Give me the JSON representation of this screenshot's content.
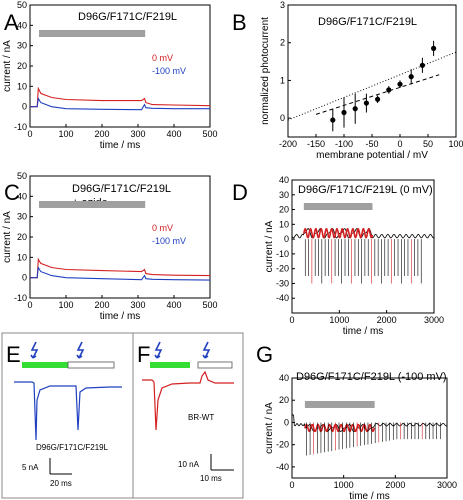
{
  "panels": {
    "A": {
      "letter": "A",
      "title": "D96G/F171C/F219L"
    },
    "B": {
      "letter": "B",
      "title": "D96G/F171C/F219L"
    },
    "C": {
      "letter": "C",
      "title": "D96G/F171C/F219L",
      "title2": "+ azide"
    },
    "D": {
      "letter": "D",
      "title": "D96G/F171C/F219L (0 mV)"
    },
    "E": {
      "letter": "E",
      "label": "D96G/F171C/F219L",
      "scale_y": "5 nA",
      "scale_x": "20 ms"
    },
    "F": {
      "letter": "F",
      "label": "BR-WT",
      "scale_y": "10 nA",
      "scale_x": "10 ms"
    },
    "G": {
      "letter": "G",
      "title": "D96G/F171C/F219L (-100 mV)"
    }
  },
  "colors": {
    "red": "#d42020",
    "blue": "#2040c0",
    "gray": "#a0a0a0",
    "green": "#33dd33",
    "black": "#000000"
  },
  "chart_data": [
    {
      "id": "A",
      "type": "line",
      "xlabel": "time / ms",
      "ylabel": "current / nA",
      "xlim": [
        0,
        500
      ],
      "ylim": [
        -10,
        50
      ],
      "xticks": [
        0,
        100,
        200,
        300,
        400,
        500
      ],
      "yticks": [
        -10,
        0,
        10,
        20,
        30,
        40,
        50
      ],
      "light_bar": [
        25,
        320
      ],
      "series": [
        {
          "name": "0 mV",
          "color": "red",
          "points": [
            [
              0,
              0
            ],
            [
              20,
              0
            ],
            [
              23,
              9
            ],
            [
              30,
              6.5
            ],
            [
              60,
              4.5
            ],
            [
              100,
              3.5
            ],
            [
              200,
              3
            ],
            [
              310,
              3
            ],
            [
              318,
              4
            ],
            [
              322,
              2
            ],
            [
              340,
              1
            ],
            [
              400,
              0.8
            ],
            [
              500,
              0.5
            ]
          ]
        },
        {
          "name": "-100 mV",
          "color": "blue",
          "points": [
            [
              0,
              0
            ],
            [
              20,
              0
            ],
            [
              23,
              4
            ],
            [
              30,
              2
            ],
            [
              60,
              0
            ],
            [
              100,
              -1
            ],
            [
              200,
              -1.3
            ],
            [
              310,
              -1.5
            ],
            [
              318,
              1
            ],
            [
              322,
              -0.5
            ],
            [
              340,
              -0.8
            ],
            [
              400,
              -1
            ],
            [
              500,
              -1
            ]
          ]
        }
      ]
    },
    {
      "id": "B",
      "type": "scatter",
      "xlabel": "membrane potential / mV",
      "ylabel": "normalized photocurrent",
      "xlim": [
        -200,
        100
      ],
      "ylim": [
        -0.5,
        3
      ],
      "xticks": [
        -200,
        -150,
        -100,
        -50,
        0,
        50,
        100
      ],
      "yticks": [
        0,
        1,
        2,
        3
      ],
      "points": [
        [
          -120,
          -0.05,
          0.3
        ],
        [
          -100,
          0.15,
          0.4
        ],
        [
          -80,
          0.25,
          0.4
        ],
        [
          -60,
          0.4,
          0.25
        ],
        [
          -40,
          0.5,
          0.1
        ],
        [
          -20,
          0.75,
          0.1
        ],
        [
          0,
          0.9,
          0.1
        ],
        [
          20,
          1.1,
          0.2
        ],
        [
          40,
          1.4,
          0.2
        ],
        [
          60,
          1.85,
          0.2
        ]
      ],
      "fit_dashed": [
        [
          -150,
          0.1
        ],
        [
          70,
          1.15
        ]
      ],
      "fit_dotted": [
        [
          -200,
          -0.05
        ],
        [
          100,
          1.75
        ]
      ]
    },
    {
      "id": "C",
      "type": "line",
      "xlabel": "time / ms",
      "ylabel": "current / nA",
      "xlim": [
        0,
        500
      ],
      "ylim": [
        -10,
        50
      ],
      "xticks": [
        0,
        100,
        200,
        300,
        400,
        500
      ],
      "yticks": [
        -10,
        0,
        10,
        20,
        30,
        40,
        50
      ],
      "light_bar": [
        25,
        320
      ],
      "series": [
        {
          "name": "0 mV",
          "color": "red",
          "points": [
            [
              0,
              0
            ],
            [
              20,
              0
            ],
            [
              23,
              9
            ],
            [
              30,
              7
            ],
            [
              60,
              5
            ],
            [
              100,
              4
            ],
            [
              200,
              3.5
            ],
            [
              310,
              3
            ],
            [
              318,
              4
            ],
            [
              322,
              2
            ],
            [
              340,
              1.5
            ],
            [
              400,
              1.2
            ],
            [
              500,
              1
            ]
          ]
        },
        {
          "name": "-100 mV",
          "color": "blue",
          "points": [
            [
              0,
              0
            ],
            [
              20,
              0
            ],
            [
              23,
              5
            ],
            [
              30,
              3
            ],
            [
              60,
              1
            ],
            [
              100,
              0
            ],
            [
              200,
              -0.5
            ],
            [
              310,
              -1
            ],
            [
              318,
              1
            ],
            [
              322,
              -0.5
            ],
            [
              340,
              -0.8
            ],
            [
              400,
              -1
            ],
            [
              500,
              -1.2
            ]
          ]
        }
      ]
    },
    {
      "id": "D",
      "type": "line",
      "xlabel": "time / ms",
      "ylabel": "current / nA",
      "xlim": [
        0,
        3000
      ],
      "ylim": [
        -50,
        40
      ],
      "xticks": [
        0,
        1000,
        2000,
        3000
      ],
      "yticks": [
        -40,
        -30,
        -20,
        -10,
        0,
        10,
        20,
        30,
        40
      ],
      "light_bar": [
        250,
        1700
      ]
    },
    {
      "id": "G",
      "type": "line",
      "xlabel": "time / ms",
      "ylabel": "current / nA",
      "xlim": [
        0,
        3000
      ],
      "ylim": [
        -50,
        40
      ],
      "xticks": [
        0,
        1000,
        2000,
        3000
      ],
      "yticks": [
        -40,
        -20,
        0,
        20,
        40
      ],
      "light_bar": [
        250,
        1600
      ]
    }
  ]
}
